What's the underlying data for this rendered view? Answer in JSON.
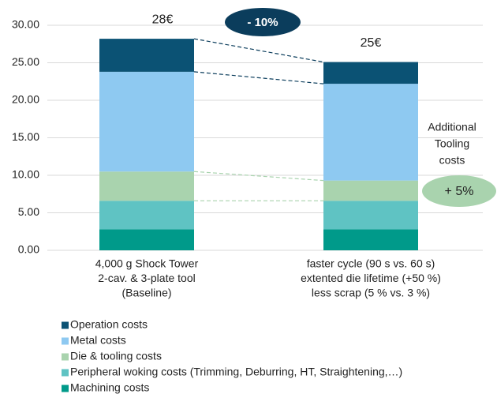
{
  "chart_data": {
    "type": "stacked_bar",
    "categories": [
      [
        "4,000 g Shock Tower",
        "2-cav. & 3-plate tool",
        "(Baseline)"
      ],
      [
        "faster cycle (90 s vs. 60 s)",
        "extented die lifetime (+50 %)",
        "less scrap (5 % vs. 3 %)"
      ]
    ],
    "series": [
      {
        "name": "Operation costs",
        "color": "#0b5274",
        "values": [
          4.4,
          2.9
        ]
      },
      {
        "name": "Metal costs",
        "color": "#8ec9f1",
        "values": [
          13.3,
          12.9
        ]
      },
      {
        "name": "Die & tooling costs",
        "color": "#a9d3ae",
        "values": [
          3.9,
          2.7
        ]
      },
      {
        "name": "Peripheral woking costs (Trimming, Deburring, HT, Straightening,…)",
        "color": "#5fc3c3",
        "values": [
          3.8,
          3.8
        ]
      },
      {
        "name": "Machining costs",
        "color": "#009a8a",
        "values": [
          2.8,
          2.8
        ]
      }
    ],
    "ylim": [
      0,
      30
    ],
    "yticks": [
      {
        "value": 0,
        "label": "0.00"
      },
      {
        "value": 5,
        "label": "5.00"
      },
      {
        "value": 10,
        "label": "10.00"
      },
      {
        "value": 15,
        "label": "15.00"
      },
      {
        "value": 20,
        "label": "20.00"
      },
      {
        "value": 25,
        "label": "25.00"
      },
      {
        "value": 30,
        "label": "30.00"
      }
    ],
    "grid": true,
    "legend": "bottom",
    "total_labels": [
      "28€",
      "25€"
    ],
    "annotations": {
      "reduction": "- 10%",
      "tooling_note": [
        "Additional",
        "Tooling",
        "costs"
      ],
      "tooling_increase": "+ 5%"
    }
  }
}
